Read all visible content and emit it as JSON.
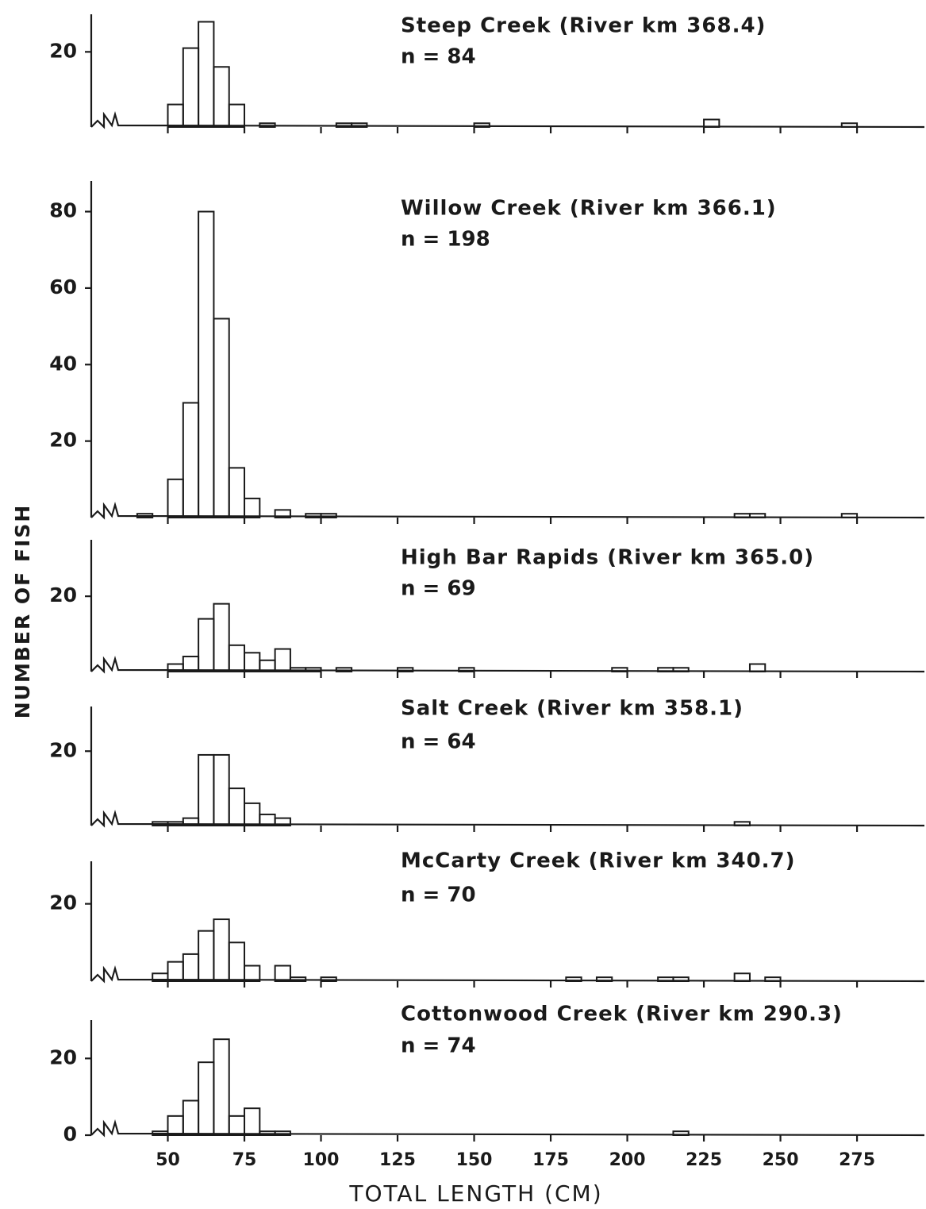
{
  "ylabel": "NUMBER OF FISH",
  "chart_data": [
    {
      "type": "histogram",
      "title": "Steep Creek (River km 368.4)",
      "subtitle": "n = 84",
      "bins": [
        40,
        45,
        50,
        55,
        60,
        65,
        70,
        75,
        80,
        85,
        90,
        95,
        100,
        105,
        110,
        115,
        120,
        125,
        130,
        135,
        140,
        145,
        150,
        155,
        160,
        165,
        170,
        175,
        180,
        185,
        190,
        195,
        200,
        205,
        210,
        215,
        220,
        225,
        230,
        235,
        240,
        245,
        250,
        255,
        260,
        265,
        270,
        275,
        280
      ],
      "values": [
        0,
        0,
        6,
        21,
        28,
        16,
        6,
        0,
        1,
        0,
        0,
        0,
        0,
        1,
        1,
        0,
        0,
        0,
        0,
        0,
        0,
        0,
        1,
        0,
        0,
        0,
        0,
        0,
        0,
        0,
        0,
        0,
        0,
        0,
        0,
        0,
        0,
        2,
        0,
        0,
        0,
        0,
        0,
        0,
        0,
        0,
        1,
        0
      ],
      "xlim": [
        25,
        297
      ],
      "xticks": [
        50,
        75,
        100,
        125,
        150,
        175,
        200,
        225,
        250,
        275
      ],
      "ylim": [
        0,
        30
      ],
      "yticks": [
        20
      ]
    },
    {
      "type": "histogram",
      "title": "Willow Creek (River km 366.1)",
      "subtitle": "n = 198",
      "bins": [
        40,
        45,
        50,
        55,
        60,
        65,
        70,
        75,
        80,
        85,
        90,
        95,
        100,
        105,
        110,
        115,
        120,
        125,
        130,
        135,
        140,
        145,
        150,
        155,
        160,
        165,
        170,
        175,
        180,
        185,
        190,
        195,
        200,
        205,
        210,
        215,
        220,
        225,
        230,
        235,
        240,
        245,
        250,
        255,
        260,
        265,
        270,
        275,
        280
      ],
      "values": [
        1,
        0,
        10,
        30,
        80,
        52,
        13,
        5,
        0,
        2,
        0,
        1,
        1,
        0,
        0,
        0,
        0,
        0,
        0,
        0,
        0,
        0,
        0,
        0,
        0,
        0,
        0,
        0,
        0,
        0,
        0,
        0,
        0,
        0,
        0,
        0,
        0,
        0,
        0,
        1,
        1,
        0,
        0,
        0,
        0,
        0,
        1,
        0
      ],
      "xlim": [
        25,
        297
      ],
      "xticks": [
        50,
        75,
        100,
        125,
        150,
        175,
        200,
        225,
        250,
        275
      ],
      "ylim": [
        0,
        88
      ],
      "yticks": [
        20,
        40,
        60,
        80
      ]
    },
    {
      "type": "histogram",
      "title": "High Bar Rapids (River km 365.0)",
      "subtitle": "n = 69",
      "bins": [
        40,
        45,
        50,
        55,
        60,
        65,
        70,
        75,
        80,
        85,
        90,
        95,
        100,
        105,
        110,
        115,
        120,
        125,
        130,
        135,
        140,
        145,
        150,
        155,
        160,
        165,
        170,
        175,
        180,
        185,
        190,
        195,
        200,
        205,
        210,
        215,
        220,
        225,
        230,
        235,
        240,
        245,
        250,
        255,
        260,
        265,
        270,
        275,
        280
      ],
      "values": [
        0,
        0,
        2,
        4,
        14,
        18,
        7,
        5,
        3,
        6,
        1,
        1,
        0,
        1,
        0,
        0,
        0,
        1,
        0,
        0,
        0,
        1,
        0,
        0,
        0,
        0,
        0,
        0,
        0,
        0,
        0,
        1,
        0,
        0,
        1,
        1,
        0,
        0,
        0,
        0,
        2,
        0,
        0,
        0,
        0,
        0,
        0,
        0
      ],
      "xlim": [
        25,
        297
      ],
      "xticks": [
        50,
        75,
        100,
        125,
        150,
        175,
        200,
        225,
        250,
        275
      ],
      "ylim": [
        0,
        35
      ],
      "yticks": [
        20
      ]
    },
    {
      "type": "histogram",
      "title": "Salt Creek (River km 358.1)",
      "subtitle": "n = 64",
      "bins": [
        40,
        45,
        50,
        55,
        60,
        65,
        70,
        75,
        80,
        85,
        90,
        95,
        100,
        105,
        110,
        115,
        120,
        125,
        130,
        135,
        140,
        145,
        150,
        155,
        160,
        165,
        170,
        175,
        180,
        185,
        190,
        195,
        200,
        205,
        210,
        215,
        220,
        225,
        230,
        235,
        240,
        245,
        250,
        255,
        260,
        265,
        270,
        275,
        280
      ],
      "values": [
        0,
        1,
        1,
        2,
        19,
        19,
        10,
        6,
        3,
        2,
        0,
        0,
        0,
        0,
        0,
        0,
        0,
        0,
        0,
        0,
        0,
        0,
        0,
        0,
        0,
        0,
        0,
        0,
        0,
        0,
        0,
        0,
        0,
        0,
        0,
        0,
        0,
        0,
        0,
        1,
        0,
        0,
        0,
        0,
        0,
        0,
        0,
        0
      ],
      "xlim": [
        25,
        297
      ],
      "xticks": [
        50,
        75,
        100,
        125,
        150,
        175,
        200,
        225,
        250,
        275
      ],
      "ylim": [
        0,
        32
      ],
      "yticks": [
        20
      ]
    },
    {
      "type": "histogram",
      "title": "McCarty Creek (River km 340.7)",
      "subtitle": "n = 70",
      "bins": [
        40,
        45,
        50,
        55,
        60,
        65,
        70,
        75,
        80,
        85,
        90,
        95,
        100,
        105,
        110,
        115,
        120,
        125,
        130,
        135,
        140,
        145,
        150,
        155,
        160,
        165,
        170,
        175,
        180,
        185,
        190,
        195,
        200,
        205,
        210,
        215,
        220,
        225,
        230,
        235,
        240,
        245,
        250,
        255,
        260,
        265,
        270,
        275,
        280
      ],
      "values": [
        0,
        2,
        5,
        7,
        13,
        16,
        10,
        4,
        0,
        4,
        1,
        0,
        1,
        0,
        0,
        0,
        0,
        0,
        0,
        0,
        0,
        0,
        0,
        0,
        0,
        0,
        0,
        0,
        1,
        0,
        1,
        0,
        0,
        0,
        1,
        1,
        0,
        0,
        0,
        2,
        0,
        1,
        0,
        0,
        0,
        0,
        0,
        0
      ],
      "xlim": [
        25,
        297
      ],
      "xticks": [
        50,
        75,
        100,
        125,
        150,
        175,
        200,
        225,
        250,
        275
      ],
      "ylim": [
        0,
        31
      ],
      "yticks": [
        20
      ]
    },
    {
      "type": "histogram",
      "title": "Cottonwood Creek (River km 290.3)",
      "subtitle": "n = 74",
      "bins": [
        40,
        45,
        50,
        55,
        60,
        65,
        70,
        75,
        80,
        85,
        90,
        95,
        100,
        105,
        110,
        115,
        120,
        125,
        130,
        135,
        140,
        145,
        150,
        155,
        160,
        165,
        170,
        175,
        180,
        185,
        190,
        195,
        200,
        205,
        210,
        215,
        220,
        225,
        230,
        235,
        240,
        245,
        250,
        255,
        260,
        265,
        270,
        275,
        280
      ],
      "values": [
        0,
        1,
        5,
        9,
        19,
        25,
        5,
        7,
        1,
        1,
        0,
        0,
        0,
        0,
        0,
        0,
        0,
        0,
        0,
        0,
        0,
        0,
        0,
        0,
        0,
        0,
        0,
        0,
        0,
        0,
        0,
        0,
        0,
        0,
        0,
        1,
        0,
        0,
        0,
        0,
        0,
        0,
        0,
        0,
        0,
        0,
        0,
        0
      ],
      "xlim": [
        25,
        297
      ],
      "xticks": [
        50,
        75,
        100,
        125,
        150,
        175,
        200,
        225,
        250,
        275
      ],
      "ylim": [
        0,
        30
      ],
      "yticks": [
        0,
        20
      ],
      "xlabel": "TOTAL LENGTH (CM)"
    }
  ]
}
